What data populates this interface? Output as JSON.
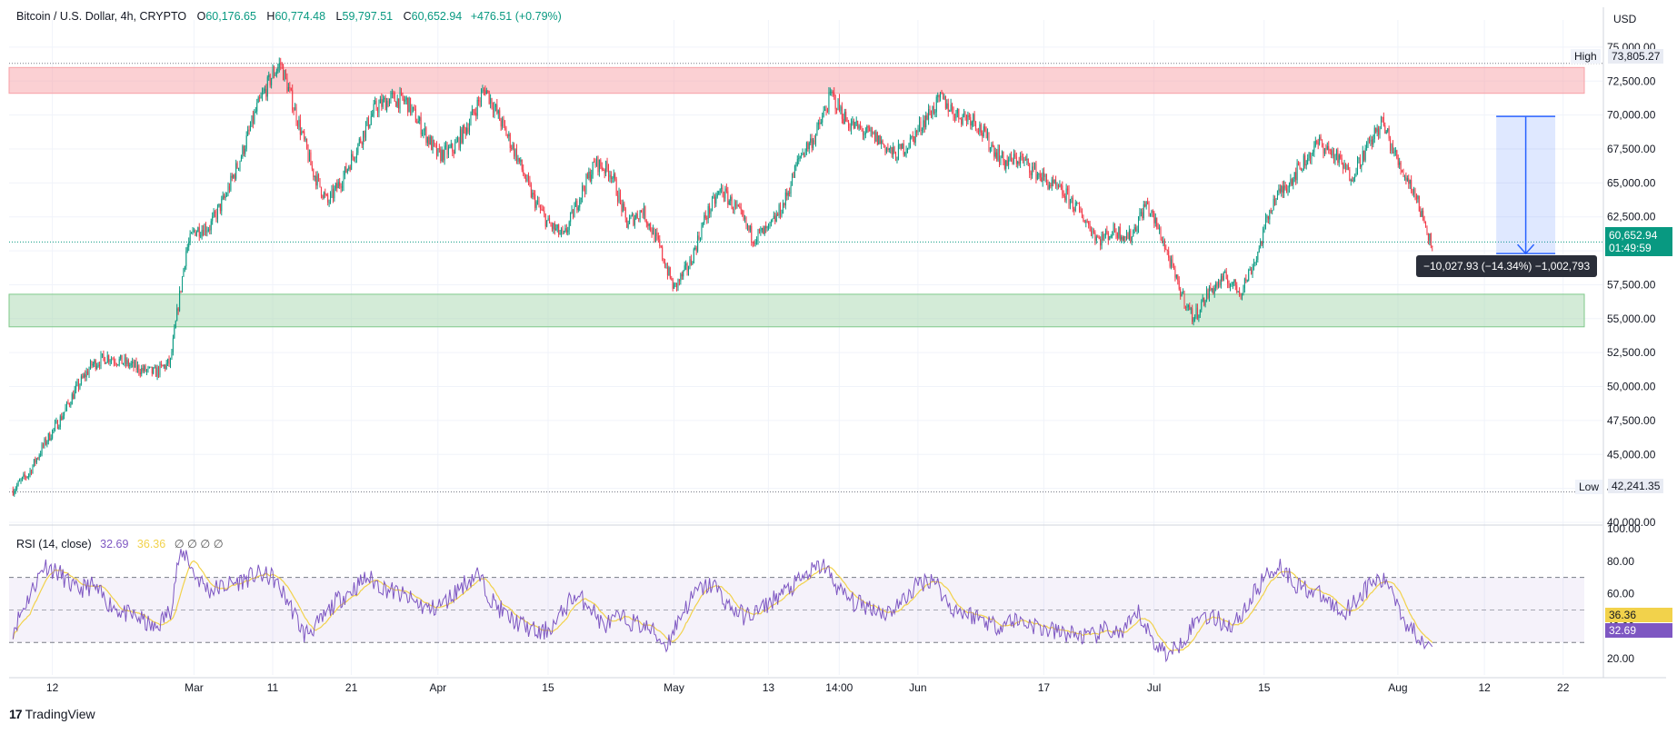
{
  "header": {
    "symbol": "Bitcoin / U.S. Dollar, 4h, CRYPTO",
    "open_label": "O",
    "open": "60,176.65",
    "high_label": "H",
    "high": "60,774.48",
    "low_label": "L",
    "low": "59,797.51",
    "close_label": "C",
    "close": "60,652.94",
    "change": "+476.51 (+0.79%)"
  },
  "currency": "USD",
  "price_tag": {
    "price": "60,652.94",
    "countdown": "01:49:59"
  },
  "high_marker": {
    "label": "High",
    "value": "73,805.27"
  },
  "low_marker": {
    "label": "Low",
    "value": "42,241.35"
  },
  "measure_label": "−10,027.93 (−14.34%) −1,002,793",
  "rsi_header": {
    "name": "RSI (14, close)",
    "rsi": "32.69",
    "ma": "36.36",
    "na": "∅ ∅ ∅ ∅"
  },
  "rsi_tags": {
    "ma": "36.36",
    "rsi": "32.69"
  },
  "branding": {
    "logo": "17",
    "name": "TradingView"
  },
  "colors": {
    "up": "#089981",
    "down": "#f23645",
    "rsi": "#7e57c2",
    "rsi_ma": "#f2d24b",
    "resistance": "#f7a1a7",
    "support": "#a8d8b0",
    "measure": "#2962ff"
  },
  "chart_data": [
    {
      "type": "candlestick",
      "title": "Bitcoin / U.S. Dollar, 4h, CRYPTO",
      "ylim": [
        40000,
        77000
      ],
      "yticks": [
        40000,
        42500,
        45000,
        47500,
        50000,
        52500,
        55000,
        57500,
        60000,
        62500,
        65000,
        67500,
        70000,
        72500,
        75000
      ],
      "ytick_labels": [
        "40,000.00",
        "42,500.00",
        "45,000.00",
        "47,500.00",
        "50,000.00",
        "52,500.00",
        "55,000.00",
        "57,500.00",
        "60,000.00",
        "62,500.00",
        "65,000.00",
        "67,500.00",
        "70,000.00",
        "72,500.00",
        "75,000.00"
      ],
      "xticks": [
        {
          "label": "12",
          "day": 0
        },
        {
          "label": "Mar",
          "day": 18
        },
        {
          "label": "11",
          "day": 28
        },
        {
          "label": "21",
          "day": 38
        },
        {
          "label": "Apr",
          "day": 49
        },
        {
          "label": "15",
          "day": 63
        },
        {
          "label": "May",
          "day": 79
        },
        {
          "label": "13",
          "day": 91
        },
        {
          "label": "14:00",
          "day": 100
        },
        {
          "label": "Jun",
          "day": 110
        },
        {
          "label": "17",
          "day": 126
        },
        {
          "label": "Jul",
          "day": 140
        },
        {
          "label": "15",
          "day": 154
        },
        {
          "label": "Aug",
          "day": 171
        },
        {
          "label": "12",
          "day": 182
        },
        {
          "label": "22",
          "day": 192
        }
      ],
      "x_day_range": [
        -5.5,
        197
      ],
      "price_path": [
        [
          -5,
          42400
        ],
        [
          -3,
          43600
        ],
        [
          -1,
          45800
        ],
        [
          1,
          47600
        ],
        [
          3,
          49800
        ],
        [
          5,
          51600
        ],
        [
          7,
          52200
        ],
        [
          9,
          51800
        ],
        [
          11,
          51300
        ],
        [
          13,
          51000
        ],
        [
          15,
          51800
        ],
        [
          16,
          56000
        ],
        [
          17,
          60000
        ],
        [
          18,
          61500
        ],
        [
          20,
          61800
        ],
        [
          22,
          64000
        ],
        [
          24,
          67000
        ],
        [
          26,
          70500
        ],
        [
          28,
          73000
        ],
        [
          29,
          73800
        ],
        [
          31,
          70000
        ],
        [
          33,
          66000
        ],
        [
          35,
          63500
        ],
        [
          37,
          65500
        ],
        [
          39,
          68000
        ],
        [
          41,
          70500
        ],
        [
          43,
          71200
        ],
        [
          45,
          71000
        ],
        [
          47,
          69000
        ],
        [
          49,
          67000
        ],
        [
          51,
          67500
        ],
        [
          53,
          69500
        ],
        [
          55,
          72000
        ],
        [
          57,
          69500
        ],
        [
          59,
          67000
        ],
        [
          61,
          64000
        ],
        [
          63,
          62000
        ],
        [
          65,
          61000
        ],
        [
          67,
          64000
        ],
        [
          69,
          66500
        ],
        [
          71,
          65800
        ],
        [
          73,
          62000
        ],
        [
          75,
          63000
        ],
        [
          77,
          60500
        ],
        [
          79,
          57200
        ],
        [
          81,
          59000
        ],
        [
          83,
          62500
        ],
        [
          85,
          64500
        ],
        [
          87,
          63000
        ],
        [
          89,
          61000
        ],
        [
          91,
          61500
        ],
        [
          93,
          63500
        ],
        [
          95,
          67000
        ],
        [
          97,
          68500
        ],
        [
          99,
          71500
        ],
        [
          101,
          69500
        ],
        [
          103,
          68800
        ],
        [
          105,
          68200
        ],
        [
          107,
          67000
        ],
        [
          109,
          68000
        ],
        [
          111,
          69800
        ],
        [
          113,
          71200
        ],
        [
          115,
          70000
        ],
        [
          117,
          69800
        ],
        [
          119,
          68000
        ],
        [
          121,
          66500
        ],
        [
          123,
          66800
        ],
        [
          125,
          65800
        ],
        [
          127,
          64800
        ],
        [
          129,
          64000
        ],
        [
          131,
          62500
        ],
        [
          133,
          60800
        ],
        [
          135,
          61500
        ],
        [
          137,
          61000
        ],
        [
          139,
          63500
        ],
        [
          141,
          61000
        ],
        [
          143,
          57500
        ],
        [
          145,
          55000
        ],
        [
          147,
          57000
        ],
        [
          149,
          58000
        ],
        [
          151,
          57000
        ],
        [
          153,
          59500
        ],
        [
          155,
          63500
        ],
        [
          157,
          65000
        ],
        [
          159,
          66500
        ],
        [
          161,
          68000
        ],
        [
          163,
          67000
        ],
        [
          165,
          65500
        ],
        [
          167,
          67500
        ],
        [
          169,
          69500
        ],
        [
          171,
          66500
        ],
        [
          173,
          64500
        ],
        [
          175,
          61000
        ],
        [
          175.5,
          60650
        ]
      ],
      "resistance_zone": [
        71600,
        73500
      ],
      "support_zone": [
        54400,
        56800
      ],
      "high": 73805.27,
      "low": 42241.35,
      "last_price": 60652.94,
      "measure": {
        "from": 69900,
        "to": 59800,
        "day_from": 183.5,
        "day_to": 191
      }
    },
    {
      "type": "line",
      "title": "RSI (14, close)",
      "ylim": [
        10,
        100
      ],
      "yticks": [
        20,
        40,
        60,
        80,
        100
      ],
      "ytick_labels": [
        "20.00",
        "40.00",
        "60.00",
        "80.00",
        "100.00"
      ],
      "bands": [
        30,
        50,
        70
      ],
      "rsi_path": [
        [
          -5,
          38
        ],
        [
          -3,
          58
        ],
        [
          -1,
          78
        ],
        [
          1,
          72
        ],
        [
          3,
          62
        ],
        [
          5,
          65
        ],
        [
          7,
          55
        ],
        [
          9,
          48
        ],
        [
          11,
          45
        ],
        [
          13,
          38
        ],
        [
          15,
          50
        ],
        [
          16,
          80
        ],
        [
          17,
          85
        ],
        [
          18,
          72
        ],
        [
          20,
          62
        ],
        [
          22,
          65
        ],
        [
          24,
          68
        ],
        [
          26,
          72
        ],
        [
          28,
          70
        ],
        [
          30,
          55
        ],
        [
          32,
          35
        ],
        [
          34,
          42
        ],
        [
          36,
          55
        ],
        [
          38,
          62
        ],
        [
          40,
          70
        ],
        [
          42,
          64
        ],
        [
          44,
          60
        ],
        [
          46,
          55
        ],
        [
          48,
          50
        ],
        [
          50,
          55
        ],
        [
          52,
          65
        ],
        [
          54,
          72
        ],
        [
          56,
          55
        ],
        [
          58,
          45
        ],
        [
          60,
          40
        ],
        [
          62,
          35
        ],
        [
          64,
          42
        ],
        [
          66,
          58
        ],
        [
          68,
          55
        ],
        [
          70,
          40
        ],
        [
          72,
          45
        ],
        [
          74,
          42
        ],
        [
          76,
          38
        ],
        [
          78,
          28
        ],
        [
          80,
          48
        ],
        [
          82,
          62
        ],
        [
          84,
          66
        ],
        [
          86,
          52
        ],
        [
          88,
          46
        ],
        [
          90,
          50
        ],
        [
          92,
          58
        ],
        [
          94,
          64
        ],
        [
          96,
          72
        ],
        [
          98,
          78
        ],
        [
          100,
          62
        ],
        [
          102,
          54
        ],
        [
          104,
          52
        ],
        [
          106,
          48
        ],
        [
          108,
          55
        ],
        [
          110,
          66
        ],
        [
          112,
          70
        ],
        [
          114,
          52
        ],
        [
          116,
          48
        ],
        [
          118,
          45
        ],
        [
          120,
          40
        ],
        [
          122,
          44
        ],
        [
          124,
          42
        ],
        [
          126,
          38
        ],
        [
          128,
          36
        ],
        [
          130,
          35
        ],
        [
          132,
          33
        ],
        [
          134,
          38
        ],
        [
          136,
          35
        ],
        [
          138,
          48
        ],
        [
          140,
          30
        ],
        [
          142,
          22
        ],
        [
          144,
          34
        ],
        [
          146,
          48
        ],
        [
          148,
          44
        ],
        [
          150,
          40
        ],
        [
          152,
          54
        ],
        [
          154,
          70
        ],
        [
          156,
          78
        ],
        [
          158,
          66
        ],
        [
          160,
          62
        ],
        [
          162,
          56
        ],
        [
          164,
          48
        ],
        [
          166,
          58
        ],
        [
          168,
          68
        ],
        [
          170,
          66
        ],
        [
          172,
          42
        ],
        [
          174,
          32
        ],
        [
          175.5,
          32.69
        ]
      ],
      "last_rsi": 32.69,
      "last_ma": 36.36
    }
  ]
}
